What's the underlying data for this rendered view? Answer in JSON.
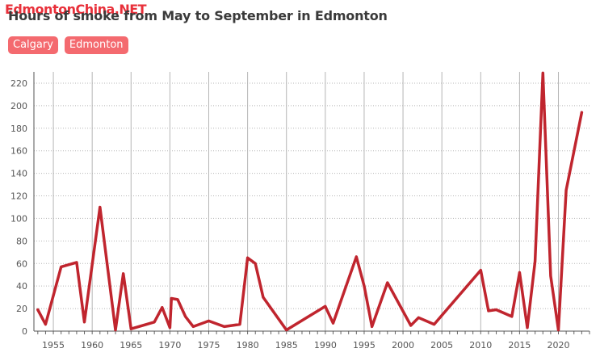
{
  "watermark": "EdmontonChina.NET",
  "title": "Hours of smoke from May to September in Edmonton",
  "tabs": [
    {
      "label": "Calgary"
    },
    {
      "label": "Edmonton"
    }
  ],
  "colors": {
    "line": "#c0252e",
    "tab_bg": "#f46a6f",
    "grid": "#b5b5b5"
  },
  "chart_data": {
    "type": "line",
    "title": "Hours of smoke from May to September in Edmonton",
    "xlabel": "",
    "ylabel": "",
    "xlim": [
      1952.5,
      2024
    ],
    "ylim": [
      0,
      230
    ],
    "xticks": [
      1955,
      1960,
      1965,
      1970,
      1975,
      1980,
      1985,
      1990,
      1995,
      2000,
      2005,
      2010,
      2015,
      2020
    ],
    "yticks": [
      0,
      20,
      40,
      60,
      80,
      100,
      120,
      140,
      160,
      180,
      200,
      220
    ],
    "grid": true,
    "series": [
      {
        "name": "",
        "x": [
          1953,
          1954,
          1956,
          1958,
          1959,
          1961,
          1963,
          1964,
          1965,
          1968,
          1969,
          1970,
          1970.2,
          1971,
          1972,
          1973,
          1975,
          1977,
          1979,
          1980,
          1981,
          1982,
          1985,
          1990,
          1991,
          1994,
          1995,
          1996,
          1998,
          2001,
          2002,
          2004,
          2010,
          2011,
          2012,
          2014,
          2015,
          2016,
          2017,
          2018,
          2019,
          2020,
          2021,
          2023
        ],
        "y": [
          19,
          6,
          57,
          61,
          8,
          110,
          1,
          51,
          2,
          8,
          21,
          3,
          29,
          28,
          13,
          4,
          9,
          4,
          6,
          65,
          60,
          30,
          1,
          22,
          7,
          66,
          40,
          4,
          43,
          5,
          12,
          6,
          54,
          18,
          19,
          13,
          52,
          3,
          62,
          229,
          49,
          1,
          125,
          194
        ]
      }
    ]
  }
}
